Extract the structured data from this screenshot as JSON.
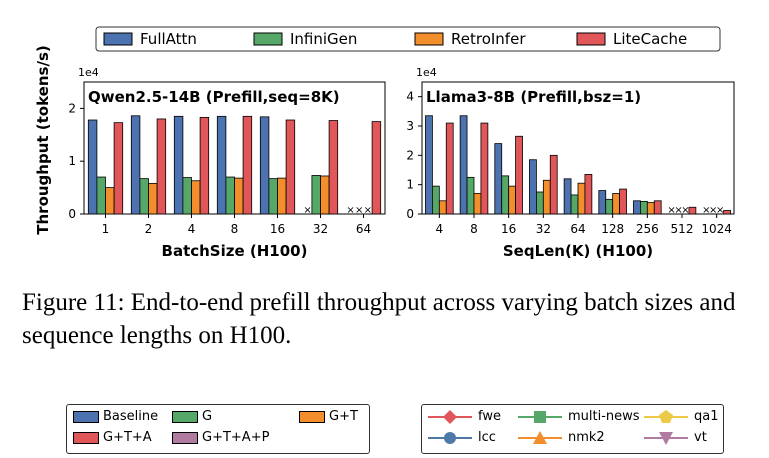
{
  "top_legend": [
    {
      "label": "FullAttn",
      "color": "#4c72b0"
    },
    {
      "label": "InfiniGen",
      "color": "#55a868"
    },
    {
      "label": "RetroInfer",
      "color": "#f28e2b"
    },
    {
      "label": "LiteCache",
      "color": "#e15759"
    }
  ],
  "shared_ylabel": "Throughput (tokens/s)",
  "chart_data": [
    {
      "type": "bar",
      "title": "Qwen2.5-14B (Prefill,seq=8K)",
      "xlabel": "BatchSize (H100)",
      "y_multiplier": "1e4",
      "ylim": [
        0,
        25000
      ],
      "yticks": [
        0,
        10000,
        20000
      ],
      "ytick_labels": [
        "0",
        "1",
        "2"
      ],
      "categories": [
        "1",
        "2",
        "4",
        "8",
        "16",
        "32",
        "64"
      ],
      "series": [
        {
          "name": "FullAttn",
          "values": [
            17800,
            18600,
            18500,
            18500,
            18400,
            null,
            null
          ],
          "oom_marker": [
            false,
            false,
            false,
            false,
            false,
            true,
            true
          ]
        },
        {
          "name": "InfiniGen",
          "values": [
            7000,
            6700,
            6900,
            7000,
            6700,
            7300,
            null
          ],
          "oom_marker": [
            false,
            false,
            false,
            false,
            false,
            false,
            true
          ]
        },
        {
          "name": "RetroInfer",
          "values": [
            5000,
            5800,
            6300,
            6800,
            6800,
            7200,
            null
          ],
          "oom_marker": [
            false,
            false,
            false,
            false,
            false,
            false,
            true
          ]
        },
        {
          "name": "LiteCache",
          "values": [
            17300,
            18000,
            18300,
            18500,
            17800,
            17700,
            17500
          ],
          "oom_marker": [
            false,
            false,
            false,
            false,
            false,
            false,
            false
          ]
        }
      ]
    },
    {
      "type": "bar",
      "title": "Llama3-8B  (Prefill,bsz=1)",
      "xlabel": "SeqLen(K) (H100)",
      "y_multiplier": "1e4",
      "ylim": [
        0,
        45000
      ],
      "yticks": [
        0,
        10000,
        20000,
        30000,
        40000
      ],
      "ytick_labels": [
        "0",
        "1",
        "2",
        "3",
        "4"
      ],
      "categories": [
        "4",
        "8",
        "16",
        "32",
        "64",
        "128",
        "256",
        "512",
        "1024"
      ],
      "series": [
        {
          "name": "FullAttn",
          "values": [
            33500,
            33500,
            24000,
            18500,
            12000,
            8000,
            4500,
            null,
            null
          ],
          "oom_marker": [
            false,
            false,
            false,
            false,
            false,
            false,
            false,
            true,
            true
          ]
        },
        {
          "name": "InfiniGen",
          "values": [
            9500,
            12500,
            13000,
            7500,
            6500,
            5000,
            4300,
            null,
            null
          ],
          "oom_marker": [
            false,
            false,
            false,
            false,
            false,
            false,
            false,
            true,
            true
          ]
        },
        {
          "name": "RetroInfer",
          "values": [
            4500,
            7000,
            9500,
            11500,
            10500,
            7000,
            3900,
            null,
            null
          ],
          "oom_marker": [
            false,
            false,
            false,
            false,
            false,
            false,
            false,
            true,
            true
          ]
        },
        {
          "name": "LiteCache",
          "values": [
            31000,
            31000,
            26500,
            20000,
            13500,
            8500,
            4500,
            2300,
            1200
          ],
          "oom_marker": [
            false,
            false,
            false,
            false,
            false,
            false,
            false,
            false,
            false
          ]
        }
      ]
    }
  ],
  "caption": "Figure 11: End-to-end prefill throughput across varying batch sizes and sequence lengths on H100.",
  "bottom_legend_left": [
    {
      "label": "Baseline",
      "color": "#4c72b0"
    },
    {
      "label": "G",
      "color": "#55a868"
    },
    {
      "label": "G+T",
      "color": "#f28e2b"
    },
    {
      "label": "G+T+A",
      "color": "#e15759"
    },
    {
      "label": "G+T+A+P",
      "color": "#b07aa1"
    }
  ],
  "bottom_legend_right": [
    {
      "label": "fwe",
      "color": "#e15759",
      "marker": "diamond"
    },
    {
      "label": "multi-news",
      "color": "#55a868",
      "marker": "square"
    },
    {
      "label": "qa1",
      "color": "#edc948",
      "marker": "pentagon"
    },
    {
      "label": "lcc",
      "color": "#4e79a7",
      "marker": "circle"
    },
    {
      "label": "nmk2",
      "color": "#f28e2b",
      "marker": "triangle-up"
    },
    {
      "label": "vt",
      "color": "#b07aa1",
      "marker": "triangle-down"
    }
  ]
}
